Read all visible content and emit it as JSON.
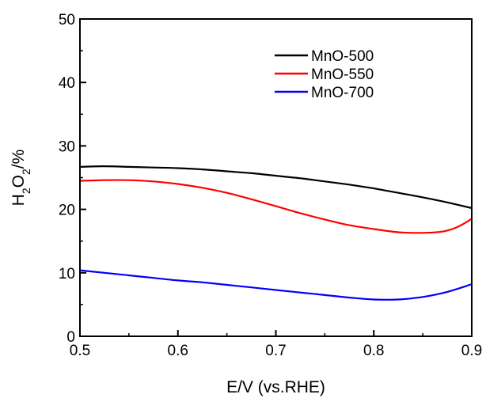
{
  "chart_data": {
    "type": "line",
    "xlabel": "E/V (vs.RHE)",
    "ylabel": {
      "base": "H",
      "sub1": "2",
      "mid": "O",
      "sub2": "2",
      "tail": "/%"
    },
    "xlim": [
      0.5,
      0.9
    ],
    "ylim": [
      0,
      50
    ],
    "x_ticks": [
      "0.5",
      "0.6",
      "0.7",
      "0.8",
      "0.9"
    ],
    "x_tick_values": [
      0.5,
      0.6,
      0.7,
      0.8,
      0.9
    ],
    "y_ticks": [
      "0",
      "10",
      "20",
      "30",
      "40",
      "50"
    ],
    "y_tick_values": [
      0,
      10,
      20,
      30,
      40,
      50
    ],
    "grid": false,
    "legend_position": "top-right",
    "series": [
      {
        "name": "MnO-500",
        "color": "#000000",
        "x": [
          0.5,
          0.525,
          0.55,
          0.575,
          0.6,
          0.625,
          0.65,
          0.675,
          0.7,
          0.725,
          0.75,
          0.775,
          0.8,
          0.825,
          0.85,
          0.875,
          0.9
        ],
        "y": [
          26.7,
          26.8,
          26.7,
          26.6,
          26.5,
          26.3,
          26.0,
          25.7,
          25.3,
          24.9,
          24.4,
          23.9,
          23.3,
          22.6,
          21.9,
          21.1,
          20.2
        ]
      },
      {
        "name": "MnO-550",
        "color": "#ff0000",
        "x": [
          0.5,
          0.525,
          0.55,
          0.575,
          0.6,
          0.625,
          0.65,
          0.675,
          0.7,
          0.725,
          0.75,
          0.775,
          0.8,
          0.825,
          0.85,
          0.87,
          0.885,
          0.9
        ],
        "y": [
          24.5,
          24.6,
          24.6,
          24.4,
          24.0,
          23.4,
          22.6,
          21.6,
          20.5,
          19.4,
          18.4,
          17.5,
          16.9,
          16.4,
          16.3,
          16.5,
          17.2,
          18.5
        ]
      },
      {
        "name": "MnO-700",
        "color": "#0000ff",
        "x": [
          0.5,
          0.525,
          0.55,
          0.575,
          0.6,
          0.625,
          0.65,
          0.675,
          0.7,
          0.725,
          0.75,
          0.775,
          0.8,
          0.825,
          0.85,
          0.875,
          0.9
        ],
        "y": [
          10.4,
          10.0,
          9.6,
          9.2,
          8.8,
          8.5,
          8.1,
          7.7,
          7.3,
          6.9,
          6.5,
          6.1,
          5.8,
          5.8,
          6.2,
          7.0,
          8.2
        ]
      }
    ]
  }
}
